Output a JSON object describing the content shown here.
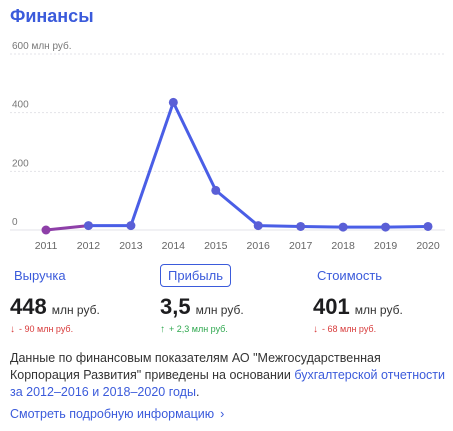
{
  "title": "Финансы",
  "chart_data": {
    "type": "line",
    "categories": [
      "2011",
      "2012",
      "2013",
      "2014",
      "2015",
      "2016",
      "2017",
      "2018",
      "2019",
      "2020"
    ],
    "series": [
      {
        "values": [
          0,
          15,
          15,
          435,
          135,
          15,
          12,
          10,
          10,
          12
        ]
      }
    ],
    "y_ticks": [
      {
        "value": 600,
        "label": "600 млн руб."
      },
      {
        "value": 400,
        "label": "400"
      },
      {
        "value": 200,
        "label": "200"
      },
      {
        "value": 0,
        "label": "0"
      }
    ],
    "ylim": [
      0,
      600
    ],
    "grid": true,
    "colors": {
      "line": "#4a5ee6",
      "first_segment": "#8e3fa8",
      "first_point": "#8e3fa8",
      "point": "#5a5fd6"
    }
  },
  "metrics": [
    {
      "label": "Выручка",
      "value": "448",
      "unit": "млн руб.",
      "delta_arrow": "↓",
      "delta": "- 90 млн руб.",
      "direction": "down"
    },
    {
      "label": "Прибыль",
      "value": "3,5",
      "unit": "млн руб.",
      "delta_arrow": "↑",
      "delta": "+ 2,3 млн руб.",
      "direction": "up"
    },
    {
      "label": "Стоимость",
      "value": "401",
      "unit": "млн руб.",
      "delta_arrow": "↓",
      "delta": "- 68 млн руб.",
      "direction": "down"
    }
  ],
  "selected_metric": "Прибыль",
  "note": {
    "text": "Данные по финансовым показателям АО \"Межгосударственная Корпорация Развития\" приведены на основании ",
    "link": "бухгалтерской отчетности за 2012–2016 и 2018–2020 годы",
    "end": "."
  },
  "more_link": {
    "label": "Смотреть подробную информацию",
    "icon": "chevron-right-icon"
  },
  "colors": {
    "accent": "#3b5bdb",
    "down": "#d83b3b",
    "up": "#2fa84f"
  }
}
